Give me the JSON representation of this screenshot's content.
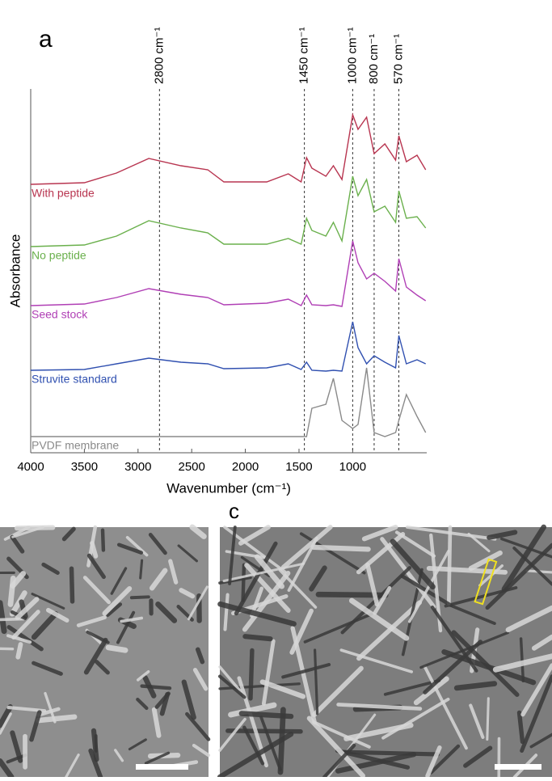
{
  "chart_data": {
    "type": "line",
    "panel_labels": [
      "a",
      "c"
    ],
    "xlabel": "Wavenumber (cm⁻¹)",
    "ylabel": "Absorbance",
    "xlim": [
      4000,
      310
    ],
    "ylim": [
      0,
      450
    ],
    "xticks": [
      4000,
      3500,
      3000,
      2500,
      2000,
      1500,
      1000
    ],
    "x": [
      4000,
      3500,
      3200,
      2900,
      2600,
      2350,
      2200,
      1800,
      1600,
      1480,
      1430,
      1380,
      1250,
      1180,
      1100,
      1000,
      950,
      870,
      800,
      700,
      600,
      570,
      500,
      400,
      320
    ],
    "series": [
      {
        "name": "With peptide",
        "color": "#b83550",
        "values": [
          332,
          334,
          346,
          364,
          355,
          350,
          335,
          335,
          345,
          335,
          365,
          352,
          342,
          355,
          338,
          418,
          400,
          415,
          370,
          382,
          362,
          392,
          360,
          368,
          350
        ]
      },
      {
        "name": "No peptide",
        "color": "#6ab04c",
        "values": [
          255,
          257,
          268,
          287,
          278,
          272,
          258,
          258,
          265,
          258,
          290,
          275,
          268,
          285,
          262,
          342,
          318,
          338,
          298,
          305,
          285,
          324,
          290,
          292,
          278
        ]
      },
      {
        "name": "Seed stock",
        "color": "#b03fb5",
        "values": [
          182,
          184,
          192,
          203,
          196,
          192,
          183,
          185,
          190,
          182,
          195,
          183,
          182,
          183,
          181,
          262,
          235,
          215,
          222,
          212,
          200,
          240,
          205,
          195,
          188
        ]
      },
      {
        "name": "Struvite standard",
        "color": "#3050b0",
        "values": [
          102,
          103,
          110,
          117,
          112,
          110,
          104,
          105,
          110,
          103,
          112,
          102,
          101,
          102,
          101,
          162,
          130,
          110,
          120,
          112,
          105,
          145,
          110,
          115,
          110
        ]
      },
      {
        "name": "PVDF membrane",
        "color": "#8a8a8a",
        "values": [
          20,
          20,
          20,
          20,
          20,
          20,
          20,
          20,
          20,
          20,
          20,
          55,
          60,
          92,
          40,
          30,
          35,
          105,
          25,
          20,
          25,
          40,
          72,
          45,
          25
        ]
      }
    ],
    "annotations": [
      {
        "value": 2800,
        "label": "2800 cm⁻¹"
      },
      {
        "value": 1450,
        "label": "1450 cm⁻¹"
      },
      {
        "value": 1000,
        "label": "1000 cm⁻¹"
      },
      {
        "value": 800,
        "label": "800 cm⁻¹"
      },
      {
        "value": 570,
        "label": "570 cm⁻¹"
      }
    ]
  }
}
